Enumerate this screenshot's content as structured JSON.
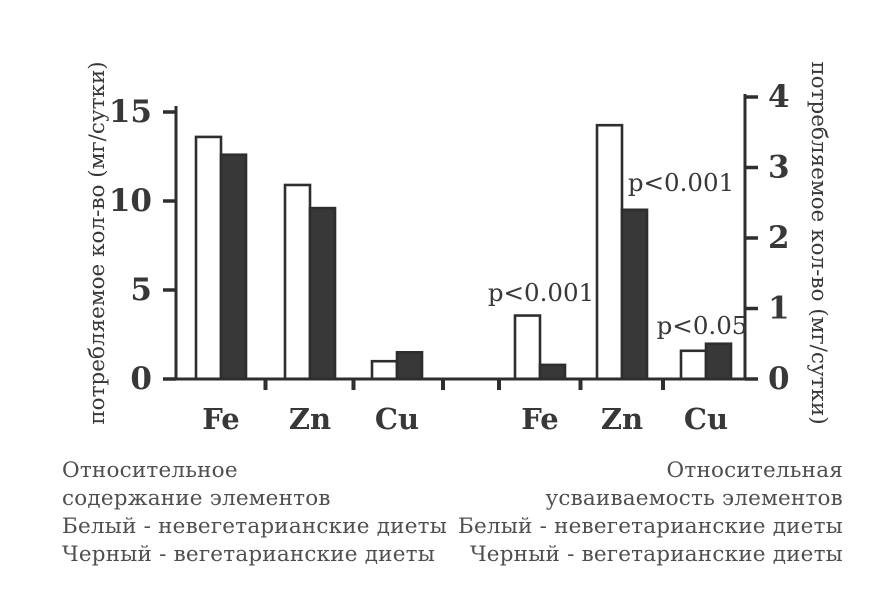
{
  "chart_data": {
    "type": "bar",
    "title": "",
    "grid": false,
    "legend_position": "none",
    "left_axis": {
      "label": "потребляемое кол-во (мг/сутки)",
      "ticks": [
        0,
        5,
        10,
        15
      ],
      "range": [
        0,
        15
      ]
    },
    "right_axis": {
      "label": "потребляемое кол-во (мг/сутки)",
      "ticks": [
        0,
        1,
        2,
        3,
        4
      ],
      "range": [
        0,
        4
      ]
    },
    "categories": [
      "Fe",
      "Zn",
      "Cu"
    ],
    "groups": [
      {
        "name": "Относительное содержание элементов",
        "axis": "left",
        "series": [
          {
            "name": "невегетарианские диеты",
            "fill": "white",
            "values": [
              13.6,
              10.9,
              1.0
            ]
          },
          {
            "name": "вегетарианские диеты",
            "fill": "black",
            "values": [
              12.6,
              9.6,
              1.5
            ]
          }
        ],
        "annotations": []
      },
      {
        "name": "Относительная усваиваемость элементов",
        "axis": "right",
        "series": [
          {
            "name": "невегетарианские диеты",
            "fill": "white",
            "values": [
              0.9,
              3.6,
              0.4
            ]
          },
          {
            "name": "вегетарианские диеты",
            "fill": "black",
            "values": [
              0.2,
              2.4,
              0.5
            ]
          }
        ],
        "annotations": [
          {
            "category": "Fe",
            "text": "p<0.001"
          },
          {
            "category": "Zn",
            "text": "p<0.001"
          },
          {
            "category": "Cu",
            "text": "p<0.05"
          }
        ]
      }
    ]
  },
  "captions": {
    "left": {
      "lines": [
        "Относительное",
        "содержание элементов",
        "Белый - невегетарианские диеты",
        "Черный - вегетарианские диеты"
      ]
    },
    "right": {
      "lines": [
        "Относительная",
        "усваиваемость элементов",
        "Белый - невегетарианские диеты",
        "Черный - вегетарианские диеты"
      ]
    }
  },
  "colors": {
    "bar_black": "#383838",
    "bar_white": "#ffffff",
    "stroke": "#2e2e2e",
    "text": "#383838",
    "caption_text": "#4f4f4f",
    "background": "#ffffff"
  }
}
